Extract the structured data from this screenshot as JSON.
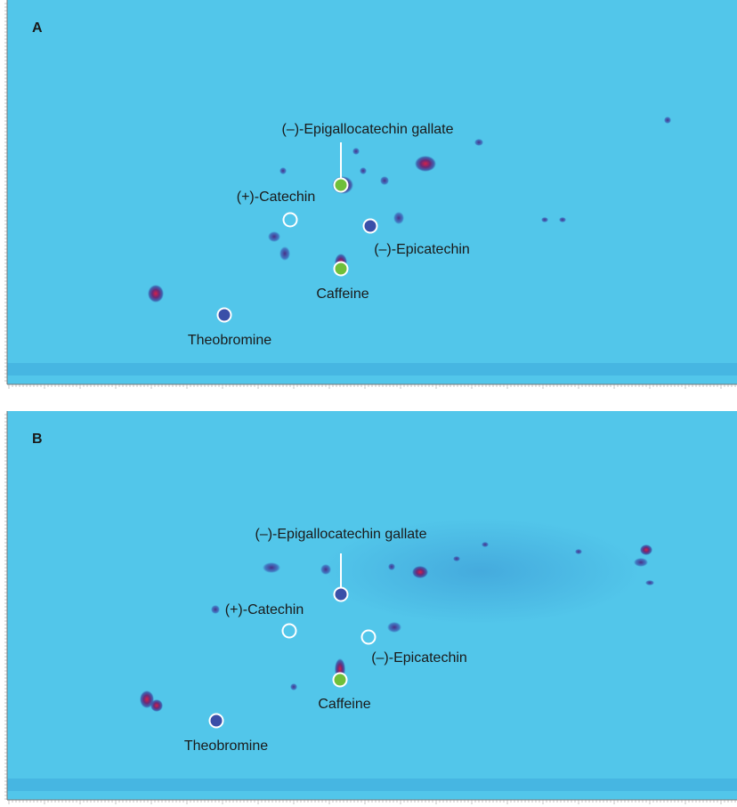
{
  "panels": [
    {
      "label": "A",
      "annotations": [
        "(–)-Epigallocatechin gallate",
        "(+)-Catechin",
        "(–)-Epicatechin",
        "Caffeine",
        "Theobromine"
      ]
    },
    {
      "label": "B",
      "annotations": [
        "(–)-Epigallocatechin gallate",
        "(+)-Catechin",
        "(–)-Epicatechin",
        "Caffeine",
        "Theobromine"
      ]
    }
  ]
}
